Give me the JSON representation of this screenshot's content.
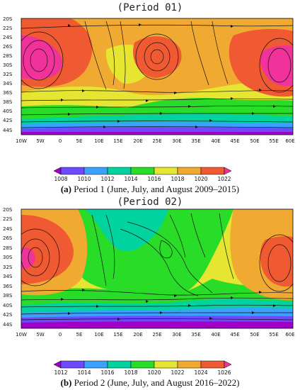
{
  "panels": [
    {
      "map_title": "(Period 01)",
      "caption_letter": "(a)",
      "caption_text": "Period 1 (June, July, and August 2009–2015)",
      "colorbar_labels": [
        "1008",
        "1010",
        "1012",
        "1014",
        "1016",
        "1018",
        "1020",
        "1022"
      ],
      "colorbar_colors": [
        "#a000c8",
        "#6e4aff",
        "#3ca0ff",
        "#00d2a0",
        "#28dc28",
        "#e6e632",
        "#f0aa32",
        "#f05a32",
        "#f0329a"
      ]
    },
    {
      "map_title": "(Period 02)",
      "caption_letter": "(b)",
      "caption_text": "Period 2 (June, July, and August 2016–2022)",
      "colorbar_labels": [
        "1012",
        "1014",
        "1016",
        "1018",
        "1020",
        "1022",
        "1024",
        "1026"
      ],
      "colorbar_colors": [
        "#a000c8",
        "#6e4aff",
        "#3ca0ff",
        "#00d2a0",
        "#28dc28",
        "#e6e632",
        "#f0aa32",
        "#f05a32",
        "#f0329a"
      ]
    }
  ],
  "lat_labels": [
    "20S",
    "22S",
    "24S",
    "26S",
    "28S",
    "30S",
    "32S",
    "34S",
    "36S",
    "38S",
    "40S",
    "42S",
    "44S"
  ],
  "lon_labels": [
    "10W",
    "5W",
    "0",
    "5E",
    "10E",
    "15E",
    "20E",
    "25E",
    "30E",
    "35E",
    "40E",
    "45E",
    "50E",
    "55E",
    "60E"
  ]
}
